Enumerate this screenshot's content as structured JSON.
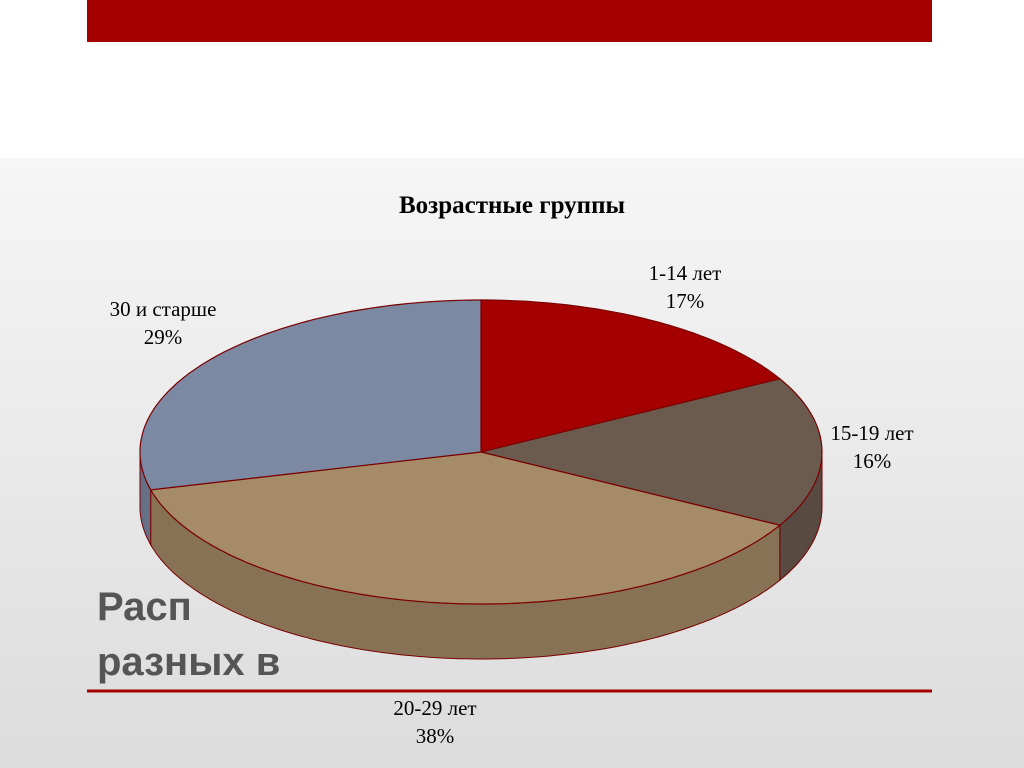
{
  "slide": {
    "title_fragments": [
      "Расп",
      "разных в"
    ]
  },
  "chart_data": {
    "type": "pie3d",
    "title": "Возрастные группы",
    "categories": [
      "1-14 лет",
      "15-19 лет",
      "20-29 лет",
      "30 и старше"
    ],
    "values": [
      17,
      16,
      38,
      29
    ],
    "value_labels": [
      "17%",
      "16%",
      "38%",
      "29%"
    ],
    "colors": [
      "#a50000",
      "#6b5a4e",
      "#a68b68",
      "#7b89a3"
    ]
  }
}
